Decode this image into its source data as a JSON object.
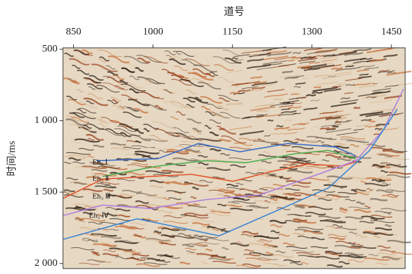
{
  "chart_data": {
    "type": "line",
    "x_label": "道号",
    "y_label": "时间/ms",
    "xlim": [
      830,
      1476
    ],
    "xticks": [
      850,
      1000,
      1150,
      1300,
      1450
    ],
    "ylim": [
      490,
      2035
    ],
    "y_inverted": true,
    "yticks": [
      500,
      {
        "value": 1000,
        "label": "1 000"
      },
      {
        "value": 1500,
        "label": "1 500"
      },
      {
        "value": 2000,
        "label": "2 000"
      }
    ],
    "annotations": [
      "Eh₃ Ⅰ",
      "Eh₃ Ⅱ",
      "Eh₃ Ⅲ",
      "Eh₃ Ⅳ"
    ],
    "series": [
      {
        "color": "#3b6fc9",
        "x": [
          893,
          1009,
          1086,
          1164,
          1254,
          1344,
          1383
        ],
        "values": [
          1280,
          1266,
          1160,
          1218,
          1160,
          1184,
          1246
        ]
      },
      {
        "color": "#4caf50",
        "x": [
          905,
          1009,
          1099,
          1177,
          1267,
          1331,
          1383
        ],
        "values": [
          1390,
          1318,
          1280,
          1294,
          1232,
          1208,
          1266
        ]
      },
      {
        "color": "#e0552b",
        "x": [
          831,
          905,
          996,
          1073,
          1151,
          1228,
          1293,
          1357,
          1390
        ],
        "values": [
          1543,
          1409,
          1390,
          1376,
          1424,
          1352,
          1304,
          1318,
          1280
        ]
      },
      {
        "color": "#b07fe0",
        "x": [
          831,
          905,
          996,
          1099,
          1202,
          1293,
          1383,
          1435,
          1473
        ],
        "values": [
          1663,
          1591,
          1615,
          1553,
          1519,
          1400,
          1280,
          1065,
          778
        ]
      },
      {
        "color": "#3a86d4",
        "x": [
          831,
          970,
          1125,
          1228,
          1331,
          1409,
          1461
        ],
        "values": [
          1830,
          1687,
          1806,
          1639,
          1471,
          1208,
          921
        ]
      }
    ]
  }
}
